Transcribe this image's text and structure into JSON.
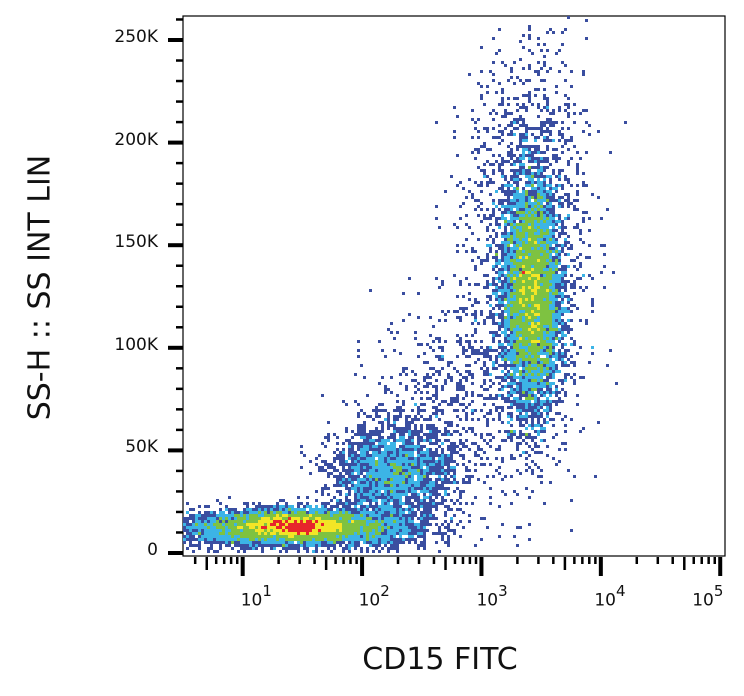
{
  "chart_data": {
    "type": "heatmap",
    "subtype": "flow-cytometry-density-dot-plot",
    "xlabel": "CD15 FITC",
    "ylabel": "SS-H :: SS INT LIN",
    "x_scale": "log",
    "x_range_log10": [
      0.5,
      5.04
    ],
    "y_range": [
      0,
      262000
    ],
    "x_ticks": [
      {
        "exp": "1",
        "base": "10"
      },
      {
        "exp": "2",
        "base": "10"
      },
      {
        "exp": "3",
        "base": "10"
      },
      {
        "exp": "4",
        "base": "10"
      },
      {
        "exp": "5",
        "base": "10"
      }
    ],
    "y_ticks": [
      {
        "value": 0,
        "label": "0"
      },
      {
        "value": 50000,
        "label": "50K"
      },
      {
        "value": 100000,
        "label": "100K"
      },
      {
        "value": 150000,
        "label": "150K"
      },
      {
        "value": 200000,
        "label": "200K"
      },
      {
        "value": 250000,
        "label": "250K"
      }
    ],
    "grid": false,
    "populations": [
      {
        "log10_x_mean": 1.45,
        "log10_x_sd": 0.28,
        "y_mean": 13000,
        "y_sd": 3800,
        "events": 6000
      },
      {
        "log10_x_mean": 0.9,
        "log10_x_sd": 0.35,
        "y_mean": 12000,
        "y_sd": 4500,
        "events": 1400
      },
      {
        "log10_x_mean": 2.0,
        "log10_x_sd": 0.3,
        "y_mean": 12000,
        "y_sd": 5000,
        "events": 1200
      },
      {
        "log10_x_mean": 2.25,
        "log10_x_sd": 0.25,
        "y_mean": 38000,
        "y_sd": 12000,
        "events": 2500
      },
      {
        "log10_x_mean": 2.7,
        "log10_x_sd": 0.3,
        "y_mean": 70000,
        "y_sd": 25000,
        "events": 600
      },
      {
        "log10_x_mean": 3.42,
        "log10_x_sd": 0.12,
        "y_mean": 125000,
        "y_sd": 28000,
        "events": 9000
      },
      {
        "log10_x_mean": 3.38,
        "log10_x_sd": 0.25,
        "y_mean": 150000,
        "y_sd": 50000,
        "events": 1800
      }
    ],
    "density_colors": [
      "#3a4ea0",
      "#3cb4e6",
      "#7ec241",
      "#f3e526",
      "#e7252b"
    ],
    "density_thresholds": [
      1,
      3,
      7,
      18,
      28
    ]
  }
}
